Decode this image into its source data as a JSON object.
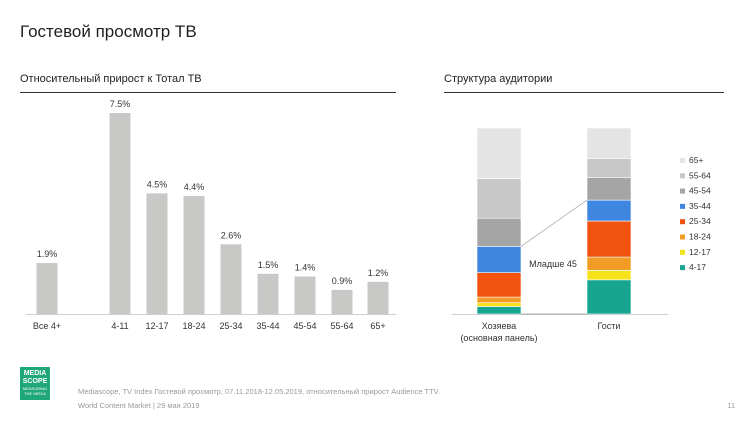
{
  "page": {
    "title": "Гостевой просмотр ТВ",
    "left_subtitle": "Относительный прирост к Тотал ТВ",
    "right_subtitle": "Структура аудитории",
    "footer_line1": "Mediascope, TV Index Гостевой просмотр, 07.11.2018-12.05.2019, относительный прирост Audience TTV.",
    "footer_line2": "World Content Market | 29 мая 2019",
    "page_number": "11",
    "logo_line1": "MEDIA",
    "logo_line2": "SCOPE",
    "logo_tagline": "MEASURING THE MEDIA"
  },
  "chart_data": [
    {
      "type": "bar",
      "title": "Относительный прирост к Тотал ТВ",
      "categories": [
        "Все 4+",
        "4-11",
        "12-17",
        "18-24",
        "25-34",
        "35-44",
        "45-54",
        "55-64",
        "65+"
      ],
      "values": [
        1.9,
        7.5,
        4.5,
        4.4,
        2.6,
        1.5,
        1.4,
        0.9,
        1.2
      ],
      "labels": [
        "1.9%",
        "7.5%",
        "4.5%",
        "4.4%",
        "2.6%",
        "1.5%",
        "1.4%",
        "0.9%",
        "1.2%"
      ],
      "unit": "%",
      "ylim": [
        0,
        7.5
      ],
      "color": "#c8c8c6",
      "grid": false
    },
    {
      "type": "bar",
      "stacked": true,
      "normalized": true,
      "title": "Структура аудитории",
      "categories": [
        "Хозяева\n(основная панель)",
        "Гости"
      ],
      "category_lines": [
        [
          "Хозяева",
          "(основная панель)"
        ],
        [
          "Гости"
        ]
      ],
      "series": [
        {
          "name": "4-17",
          "color": "#17a592",
          "values": [
            4,
            18
          ]
        },
        {
          "name": "12-17",
          "color": "#f5e21b",
          "values": [
            2,
            5
          ]
        },
        {
          "name": "18-24",
          "color": "#f39c25",
          "values": [
            3,
            7
          ]
        },
        {
          "name": "25-34",
          "color": "#f2520f",
          "values": [
            13,
            19
          ]
        },
        {
          "name": "35-44",
          "color": "#3e86e0",
          "values": [
            14,
            11
          ]
        },
        {
          "name": "45-54",
          "color": "#a5a5a5",
          "values": [
            15,
            12
          ]
        },
        {
          "name": "55-64",
          "color": "#c8c8c8",
          "values": [
            21,
            10
          ]
        },
        {
          "name": "65+",
          "color": "#e4e4e4",
          "values": [
            27,
            16
          ]
        }
      ],
      "legend_order": [
        "65+",
        "55-64",
        "45-54",
        "35-44",
        "25-34",
        "18-24",
        "12-17",
        "4-17"
      ],
      "annotation": "Младше 45",
      "legend_position": "right"
    }
  ]
}
